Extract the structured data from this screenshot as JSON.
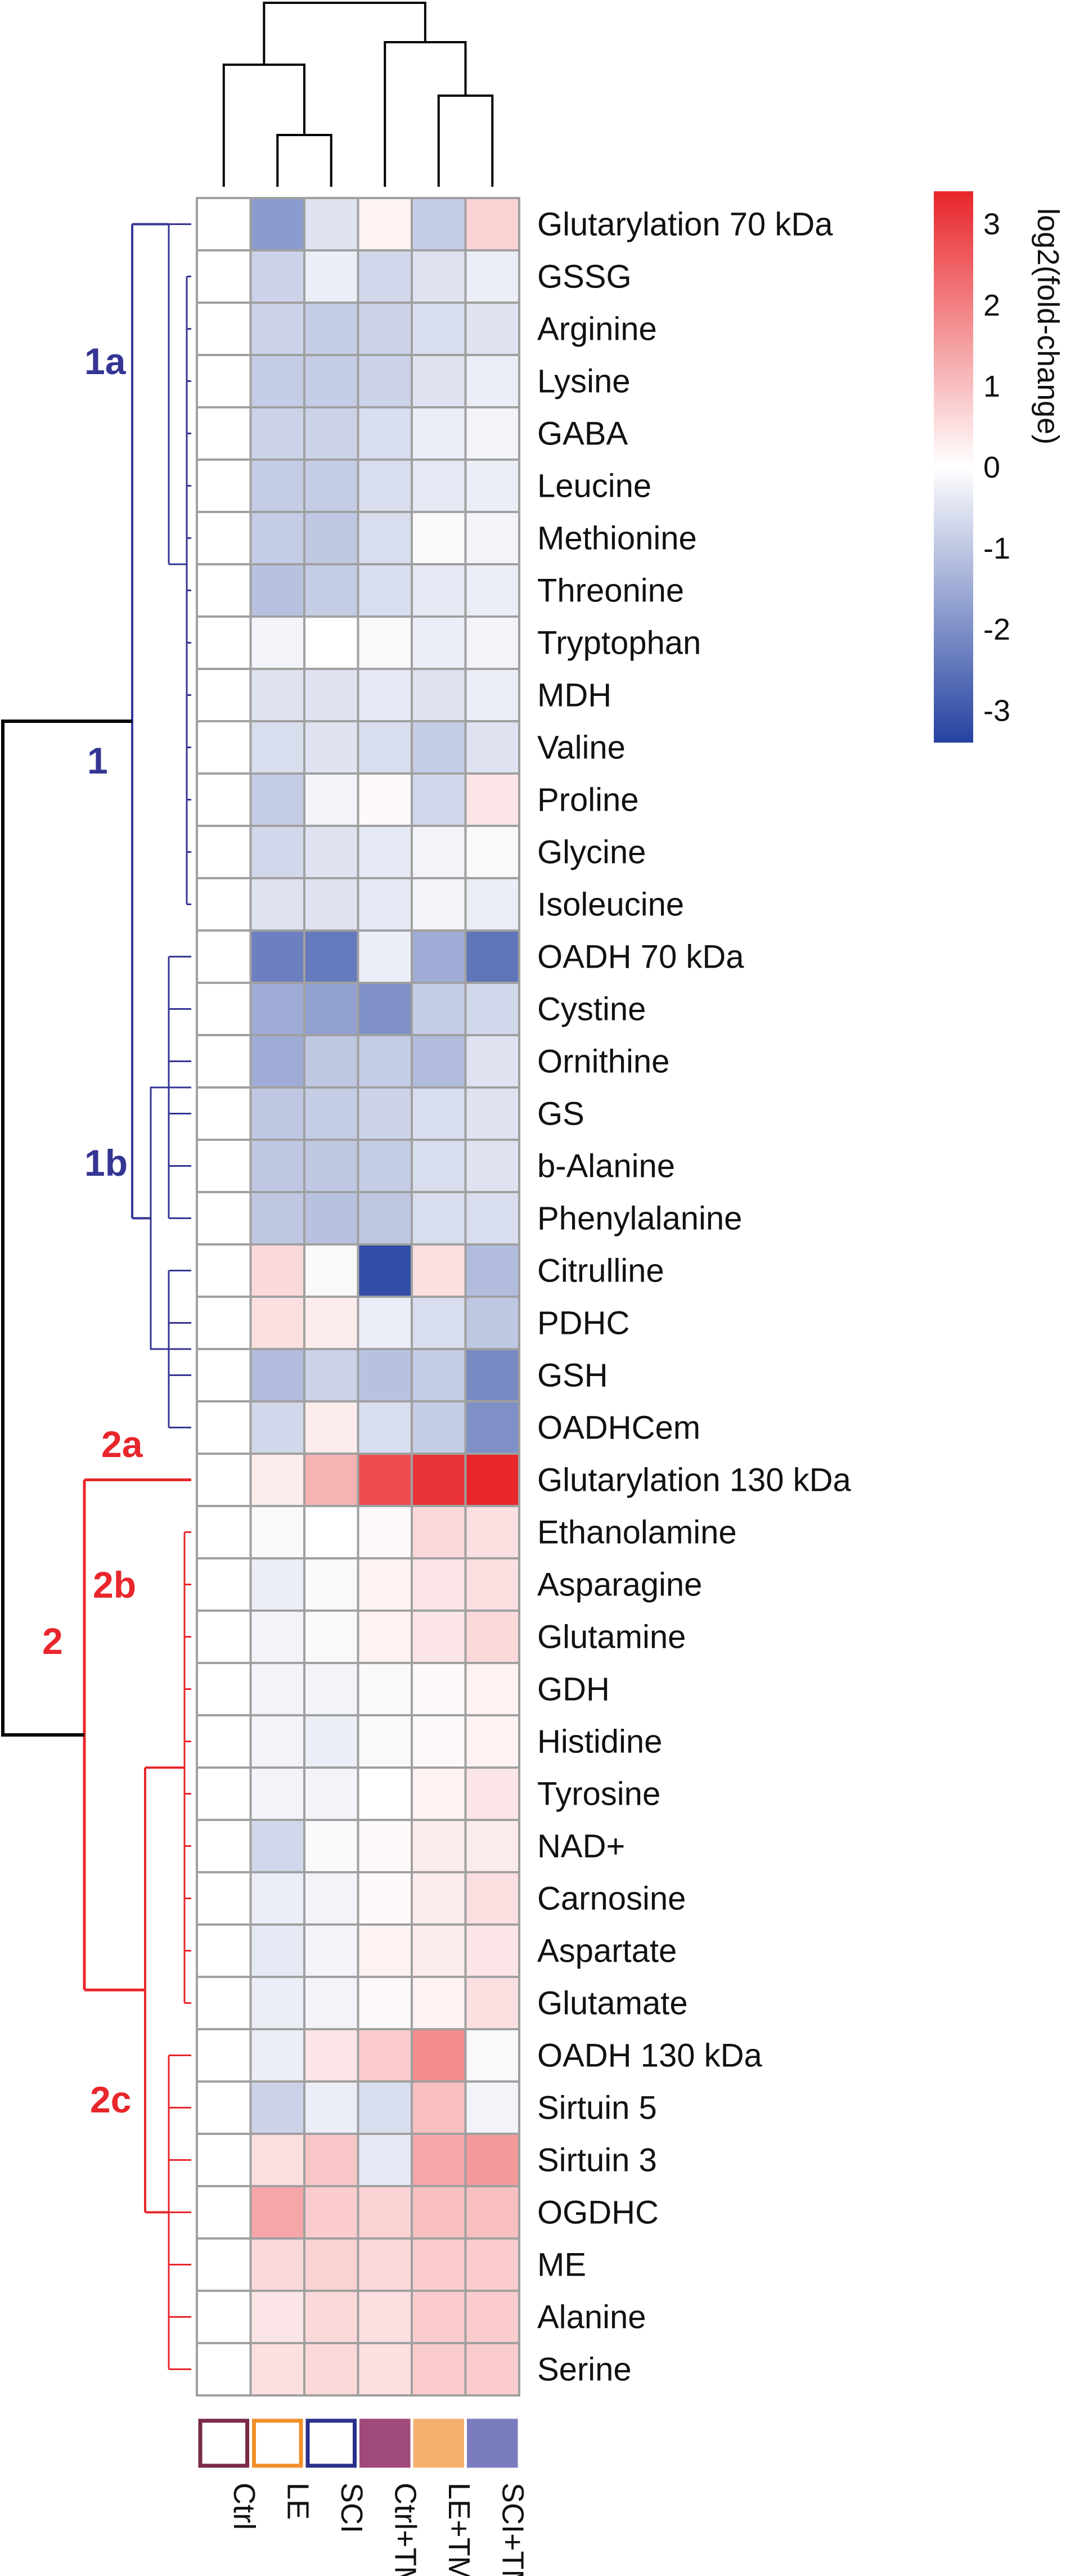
{
  "chart_data": {
    "type": "heatmap",
    "columns": [
      "Ctrl",
      "LE",
      "SCI",
      "Ctrl+TMAP",
      "LE+TMAP",
      "SCI+TMAP"
    ],
    "column_colors": [
      "#7a2a4a",
      "#f0902a",
      "#2a2f8a",
      "#a04a7a",
      "#f5b070",
      "#7a7cbf"
    ],
    "rows": [
      "Glutarylation 70 kDa",
      "GSSG",
      "Arginine",
      "Lysine",
      "GABA",
      "Leucine",
      "Methionine",
      "Threonine",
      "Tryptophan",
      "MDH",
      "Valine",
      "Proline",
      "Glycine",
      "Isoleucine",
      "OADH 70 kDa",
      "Cystine",
      "Ornithine",
      "GS",
      "b-Alanine",
      "Phenylalanine",
      "Citrulline",
      "PDHC",
      "GSH",
      "OADHCem",
      "Glutarylation 130 kDa",
      "Ethanolamine",
      "Asparagine",
      "Glutamine",
      "GDH",
      "Histidine",
      "Tyrosine",
      "NAD+",
      "Carnosine",
      "Aspartate",
      "Glutamate",
      "OADH 130 kDa",
      "Sirtuin 5",
      "Sirtuin 3",
      "OGDHC",
      "ME",
      "Alanine",
      "Serine"
    ],
    "values": [
      [
        0,
        -1.8,
        -0.5,
        0.2,
        -0.9,
        0.7
      ],
      [
        0,
        -0.8,
        -0.3,
        -0.7,
        -0.5,
        -0.3
      ],
      [
        0,
        -0.8,
        -0.9,
        -0.8,
        -0.6,
        -0.5
      ],
      [
        0,
        -0.9,
        -0.9,
        -0.8,
        -0.5,
        -0.3
      ],
      [
        0,
        -0.8,
        -0.8,
        -0.6,
        -0.3,
        -0.2
      ],
      [
        0,
        -0.9,
        -0.9,
        -0.6,
        -0.4,
        -0.3
      ],
      [
        0,
        -0.9,
        -1.0,
        -0.6,
        -0.1,
        -0.2
      ],
      [
        0,
        -1.1,
        -0.9,
        -0.6,
        -0.4,
        -0.3
      ],
      [
        0,
        -0.2,
        0,
        -0.1,
        -0.3,
        -0.2
      ],
      [
        0,
        -0.5,
        -0.5,
        -0.4,
        -0.5,
        -0.3
      ],
      [
        0,
        -0.6,
        -0.5,
        -0.6,
        -0.9,
        -0.5
      ],
      [
        0,
        -0.9,
        -0.2,
        0.1,
        -0.7,
        0.4
      ],
      [
        0,
        -0.7,
        -0.5,
        -0.4,
        -0.2,
        -0.1
      ],
      [
        0,
        -0.5,
        -0.5,
        -0.4,
        -0.2,
        -0.3
      ],
      [
        0,
        -2.3,
        -2.4,
        -0.3,
        -1.5,
        -2.5
      ],
      [
        0,
        -1.5,
        -1.7,
        -2.0,
        -0.9,
        -0.7
      ],
      [
        0,
        -1.5,
        -1.0,
        -0.9,
        -1.2,
        -0.5
      ],
      [
        0,
        -1.0,
        -0.9,
        -0.8,
        -0.6,
        -0.5
      ],
      [
        0,
        -1.0,
        -1.0,
        -0.9,
        -0.6,
        -0.5
      ],
      [
        0,
        -1.0,
        -1.1,
        -1.0,
        -0.6,
        -0.6
      ],
      [
        0,
        0.6,
        -0.1,
        -3.2,
        0.5,
        -1.2
      ],
      [
        0,
        0.5,
        0.3,
        -0.3,
        -0.6,
        -1.0
      ],
      [
        0,
        -1.2,
        -0.8,
        -1.1,
        -0.9,
        -2.1
      ],
      [
        0,
        -0.7,
        0.3,
        -0.6,
        -0.9,
        -2.0
      ],
      [
        0,
        0.3,
        1.2,
        2.8,
        3.2,
        3.4
      ],
      [
        0,
        -0.1,
        0,
        0.1,
        0.6,
        0.5
      ],
      [
        0,
        -0.3,
        -0.1,
        0.2,
        0.4,
        0.5
      ],
      [
        0,
        -0.2,
        -0.1,
        0.2,
        0.4,
        0.6
      ],
      [
        0,
        -0.2,
        -0.2,
        -0.1,
        0.1,
        0.2
      ],
      [
        0,
        -0.2,
        -0.3,
        -0.1,
        0.1,
        0.2
      ],
      [
        0,
        -0.2,
        -0.2,
        0,
        0.2,
        0.4
      ],
      [
        0,
        -0.7,
        -0.1,
        0.1,
        0.3,
        0.3
      ],
      [
        0,
        -0.3,
        -0.2,
        0.1,
        0.3,
        0.5
      ],
      [
        0,
        -0.4,
        -0.2,
        0.2,
        0.3,
        0.4
      ],
      [
        0,
        -0.3,
        -0.2,
        0.1,
        0.2,
        0.5
      ],
      [
        0,
        -0.3,
        0.4,
        0.8,
        1.8,
        -0.1
      ],
      [
        0,
        -0.8,
        -0.3,
        -0.6,
        1.0,
        -0.2
      ],
      [
        0,
        0.5,
        0.9,
        -0.4,
        1.4,
        1.6
      ],
      [
        0,
        1.4,
        0.8,
        0.7,
        1.0,
        1.0
      ],
      [
        0,
        0.6,
        0.7,
        0.6,
        0.8,
        0.8
      ],
      [
        0,
        0.4,
        0.6,
        0.5,
        0.8,
        0.8
      ],
      [
        0,
        0.5,
        0.6,
        0.5,
        0.8,
        0.8
      ]
    ],
    "colorbar": {
      "title": "log2(fold-change)",
      "range": [
        -3.4,
        3.4
      ],
      "ticks": [
        3,
        2,
        1,
        0,
        -1,
        -2,
        -3
      ],
      "colors": {
        "low": "#2542a0",
        "mid": "#ffffff",
        "high": "#e8262b"
      }
    },
    "row_clusters": [
      {
        "label": "1",
        "color": "#353594"
      },
      {
        "label": "1a",
        "color": "#353594"
      },
      {
        "label": "1b",
        "color": "#353594"
      },
      {
        "label": "2",
        "color": "#e8262b"
      },
      {
        "label": "2a",
        "color": "#e8262b"
      },
      {
        "label": "2b",
        "color": "#e8262b"
      },
      {
        "label": "2c",
        "color": "#e8262b"
      }
    ],
    "colors": {
      "cluster_1": "#353594",
      "cluster_2": "#e8262b",
      "root": "#000000",
      "grid": "#a0a0a0"
    }
  }
}
